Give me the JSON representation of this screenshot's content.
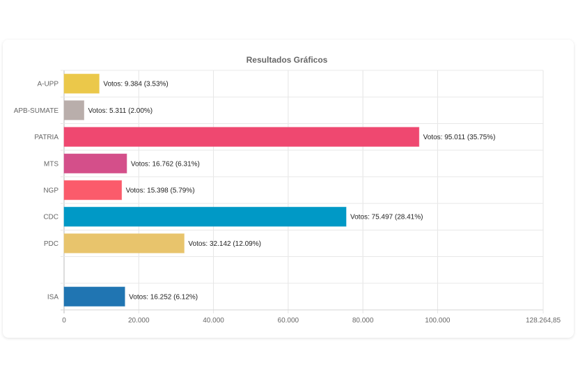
{
  "chart_data": {
    "type": "bar",
    "orientation": "horizontal",
    "title": "Resultados Gráficos",
    "xlabel": "",
    "ylabel": "",
    "xlim": [
      0,
      128264.85
    ],
    "x_ticks": [
      "0",
      "20.000",
      "40.000",
      "60.000",
      "80.000",
      "100.000",
      "128.264,85"
    ],
    "x_tick_values": [
      0,
      20000,
      40000,
      60000,
      80000,
      100000,
      128264.85
    ],
    "grid": true,
    "legend": "none",
    "categories": [
      "A-UPP",
      "APB-SUMATE",
      "PATRIA",
      "MTS",
      "NGP",
      "CDC",
      "PDC",
      "",
      "ISA"
    ],
    "values": [
      9384,
      5311,
      95011,
      16762,
      15398,
      75497,
      32142,
      null,
      16252
    ],
    "percentages": [
      3.53,
      2.0,
      35.75,
      6.31,
      5.79,
      28.41,
      12.09,
      null,
      6.12
    ],
    "data_labels": [
      "Votos: 9.384 (3.53%)",
      "Votos: 5.311 (2.00%)",
      "Votos: 95.011 (35.75%)",
      "Votos: 16.762 (6.31%)",
      "Votos: 15.398 (5.79%)",
      "Votos: 75.497 (28.41%)",
      "Votos: 32.142 (12.09%)",
      "",
      "Votos: 16.252 (6.12%)"
    ],
    "colors": [
      "#ebc84a",
      "#b9aeab",
      "#ef4870",
      "#d44f8a",
      "#fb5b6b",
      "#0099c6",
      "#e8c46c",
      "#ffffff",
      "#2075b2"
    ]
  }
}
